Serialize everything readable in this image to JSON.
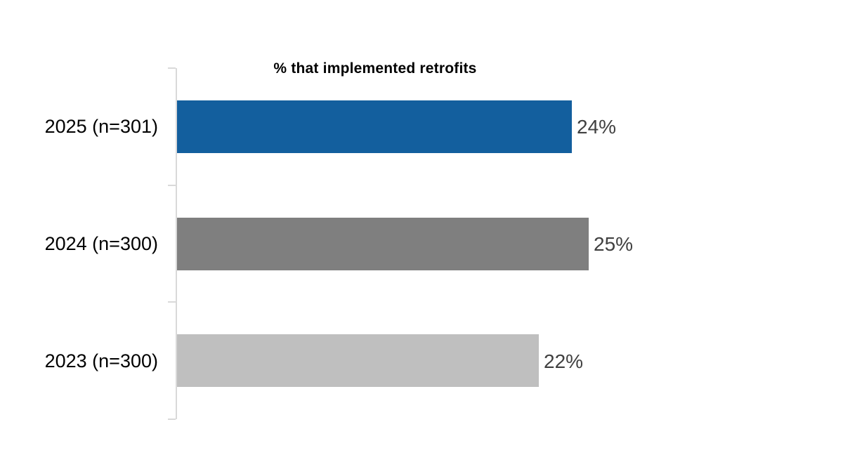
{
  "chart_data": {
    "type": "bar",
    "orientation": "horizontal",
    "title": "% that implemented retrofits",
    "categories": [
      "2025 (n=301)",
      "2024 (n=300)",
      "2023 (n=300)"
    ],
    "values": [
      24,
      25,
      22
    ],
    "value_labels": [
      "24%",
      "25%",
      "22%"
    ],
    "series": [
      {
        "name": "% that implemented retrofits",
        "values": [
          24,
          25,
          22
        ]
      }
    ],
    "bar_colors": [
      "#135f9e",
      "#7f7f7f",
      "#bfbfbf"
    ],
    "xlabel": "",
    "ylabel": "",
    "xlim": [
      0,
      40
    ],
    "grid": false,
    "legend_position": "none",
    "axis_color": "#d9d9d9",
    "category_label_color": "#000000",
    "value_label_color": "#404040",
    "title_color": "#000000",
    "background_color": "#ffffff"
  }
}
